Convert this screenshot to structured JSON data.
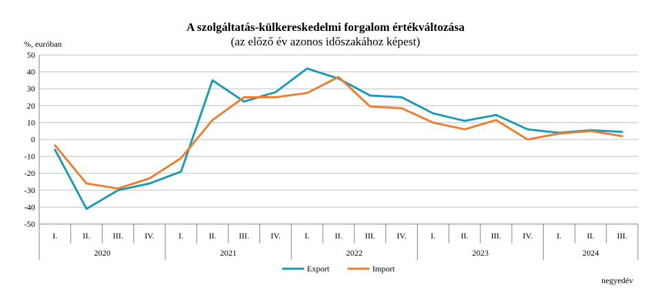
{
  "chart_data": {
    "type": "line",
    "title": "A szolgáltatás-külkereskedelmi forgalom értékváltozása",
    "subtitle": "(az előző év azonos időszakához képest)",
    "ylabel": "%, euróban",
    "xlabel": "negyedév",
    "ylim": [
      -50,
      50
    ],
    "yticks": [
      -50,
      -40,
      -30,
      -20,
      -10,
      0,
      10,
      20,
      30,
      40,
      50
    ],
    "grid": true,
    "legend_position": "bottom-center",
    "categories": [
      "I.",
      "II.",
      "III.",
      "IV.",
      "I.",
      "II.",
      "III.",
      "IV.",
      "I.",
      "II.",
      "III.",
      "IV.",
      "I.",
      "II.",
      "III.",
      "IV.",
      "I.",
      "II.",
      "III."
    ],
    "years": [
      {
        "label": "2020",
        "quarters": 4
      },
      {
        "label": "2021",
        "quarters": 4
      },
      {
        "label": "2022",
        "quarters": 4
      },
      {
        "label": "2023",
        "quarters": 4
      },
      {
        "label": "2024",
        "quarters": 3
      }
    ],
    "series": [
      {
        "name": "Export",
        "color": "#1a9bb5",
        "values": [
          -6,
          -41,
          -30,
          -26,
          -19,
          35,
          22.5,
          28,
          42,
          36,
          26,
          25,
          15.5,
          11,
          14.5,
          6,
          4,
          5.5,
          4.5
        ]
      },
      {
        "name": "Import",
        "color": "#ed7d31",
        "values": [
          -3.5,
          -26,
          -29,
          -23,
          -11,
          11.5,
          25,
          25,
          27.5,
          37,
          19.5,
          18.5,
          10,
          6,
          11.5,
          0,
          3.5,
          5,
          2
        ]
      }
    ]
  }
}
